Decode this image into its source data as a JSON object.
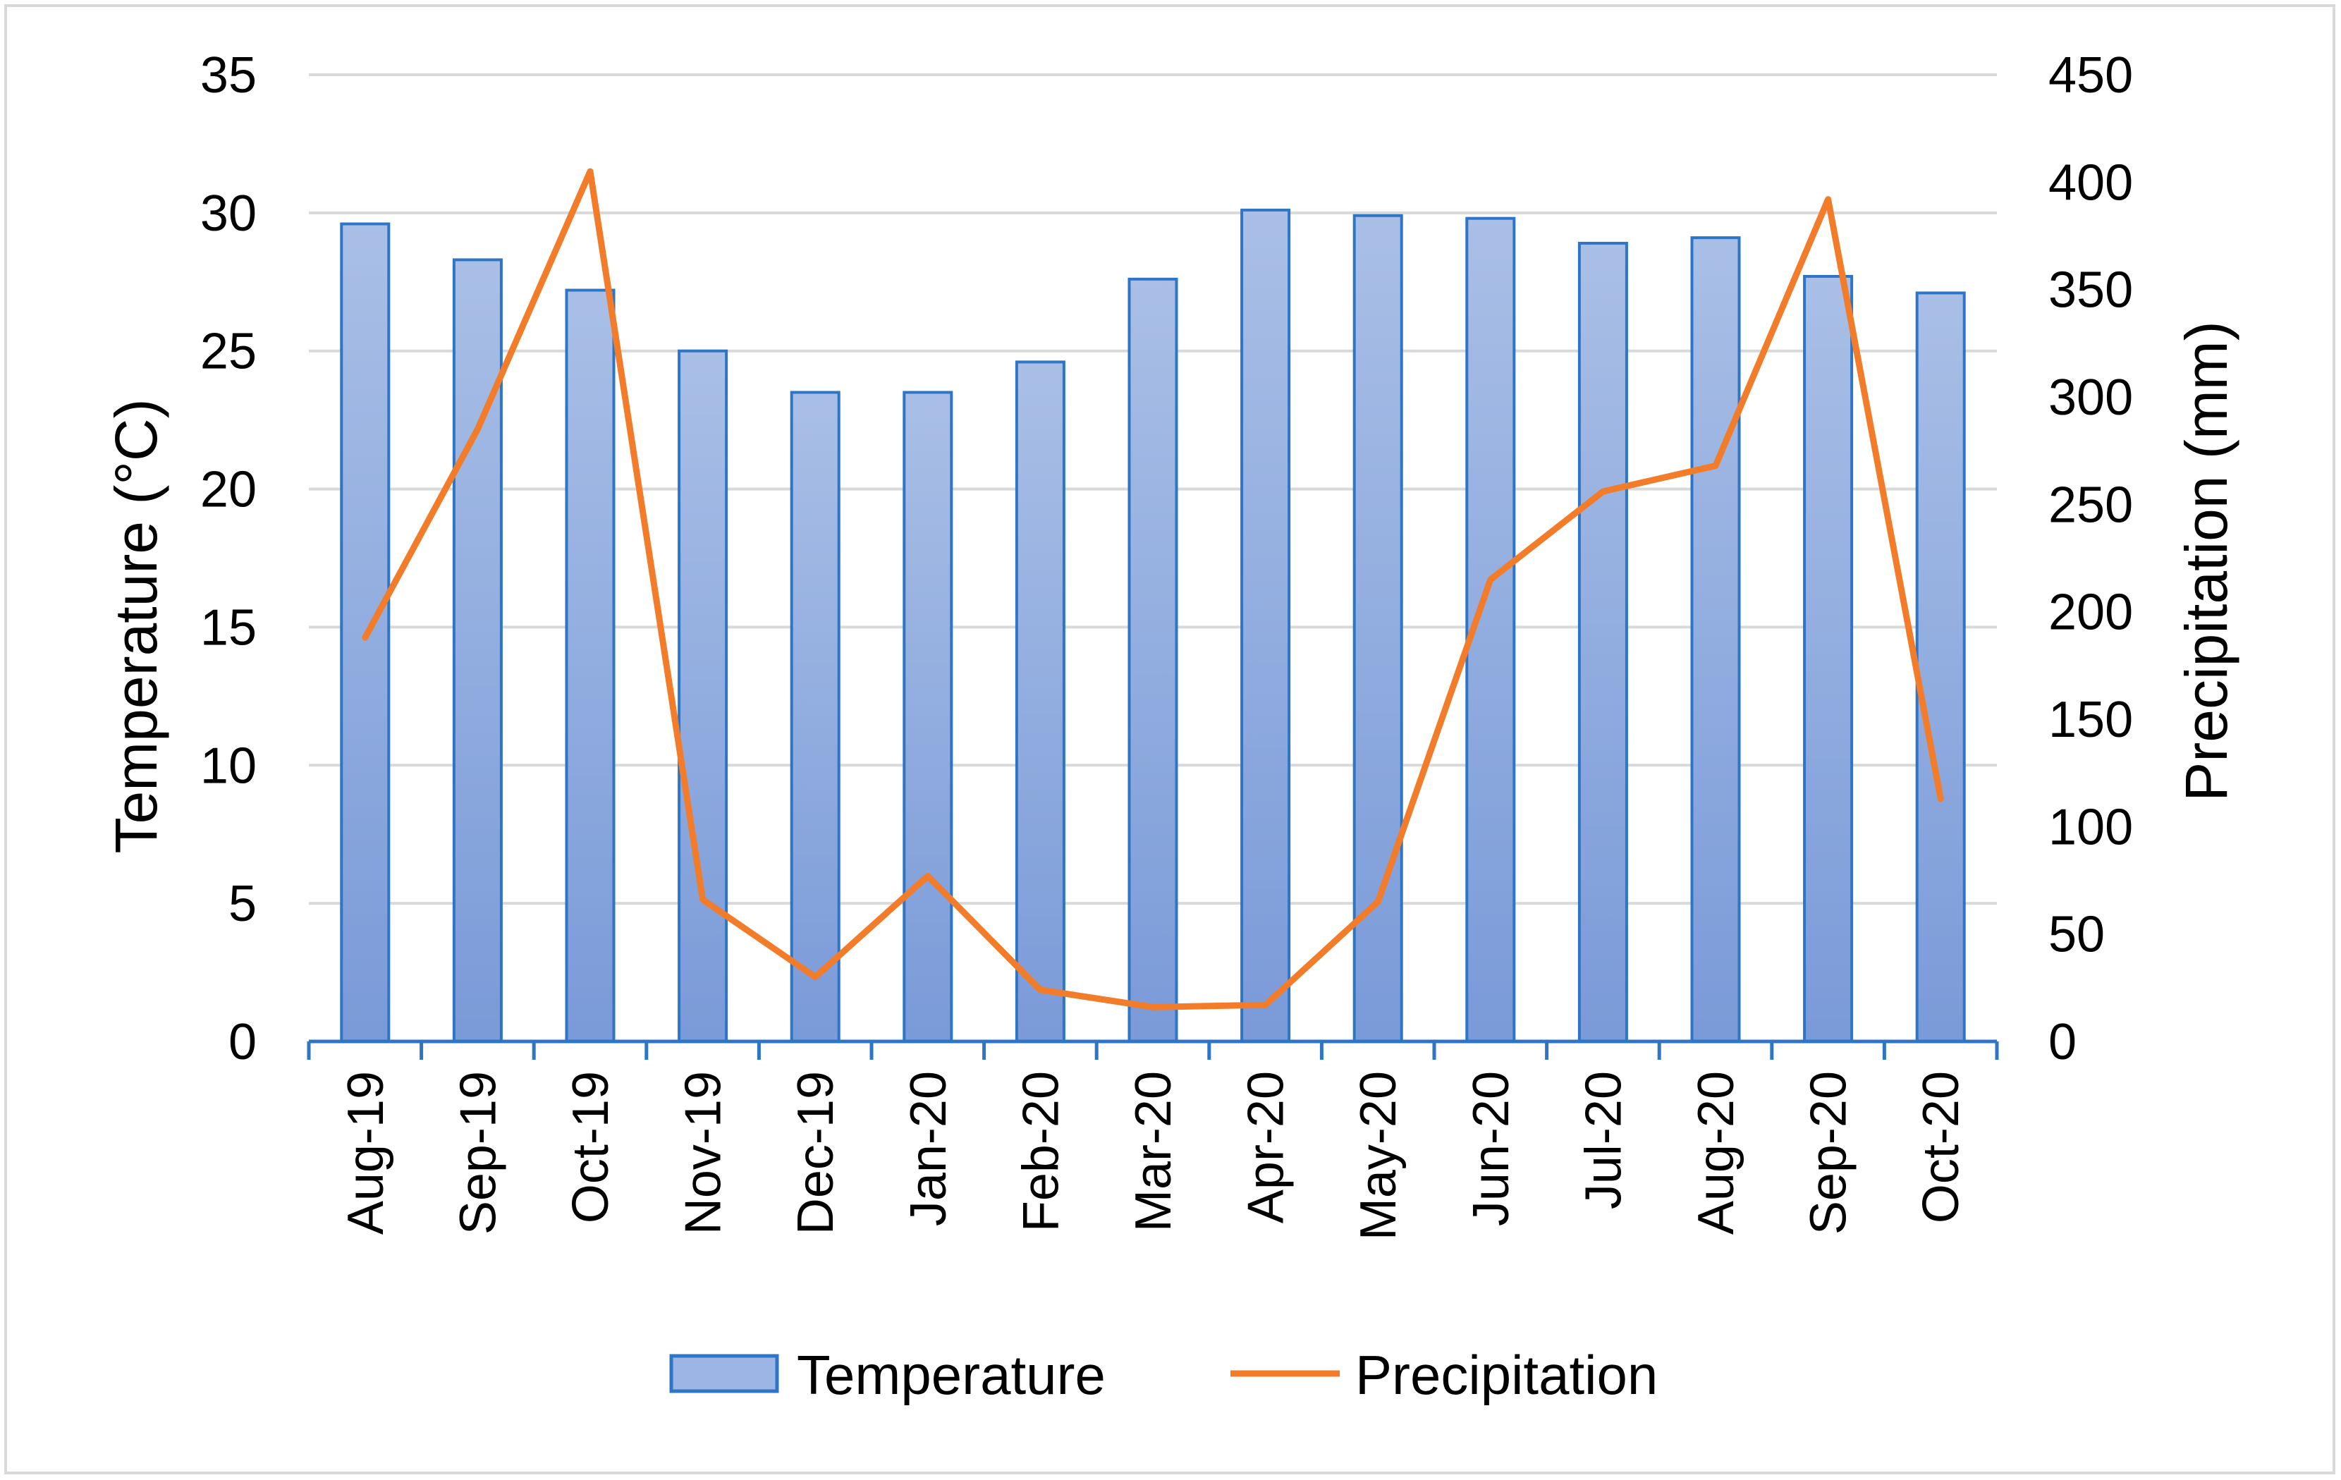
{
  "chart_data": {
    "type": "bar",
    "categories": [
      "Aug-19",
      "Sep-19",
      "Oct-19",
      "Nov-19",
      "Dec-19",
      "Jan-20",
      "Feb-20",
      "Mar-20",
      "Apr-20",
      "May-20",
      "Jun-20",
      "Jul-20",
      "Aug-20",
      "Sep-20",
      "Oct-20"
    ],
    "series": [
      {
        "name": "Temperature",
        "type": "bar",
        "axis": "left",
        "color": "#7f9fda",
        "border_color": "#2e75c5",
        "values": [
          29.6,
          28.3,
          27.2,
          25.0,
          23.5,
          23.5,
          24.6,
          27.6,
          30.1,
          29.9,
          29.8,
          28.9,
          29.1,
          27.7,
          27.1
        ]
      },
      {
        "name": "Precipitation",
        "type": "line",
        "axis": "right",
        "color": "#f27c2a",
        "values": [
          188,
          285,
          405,
          66,
          30,
          77,
          24,
          16,
          17,
          65,
          215,
          256,
          268,
          392,
          113
        ]
      }
    ],
    "title": "",
    "xlabel": "",
    "ylabel": "Temperature (°C)",
    "y2label": "Precipitation (mm)",
    "ylim": [
      0,
      35
    ],
    "y2lim": [
      0,
      450
    ],
    "yticks": [
      "0",
      "5",
      "10",
      "15",
      "20",
      "25",
      "30",
      "35"
    ],
    "y2ticks": [
      "0",
      "50",
      "100",
      "150",
      "200",
      "250",
      "300",
      "350",
      "400",
      "450"
    ],
    "legend": [
      "Temperature",
      "Precipitation"
    ],
    "legend_position": "bottom",
    "grid": true
  }
}
